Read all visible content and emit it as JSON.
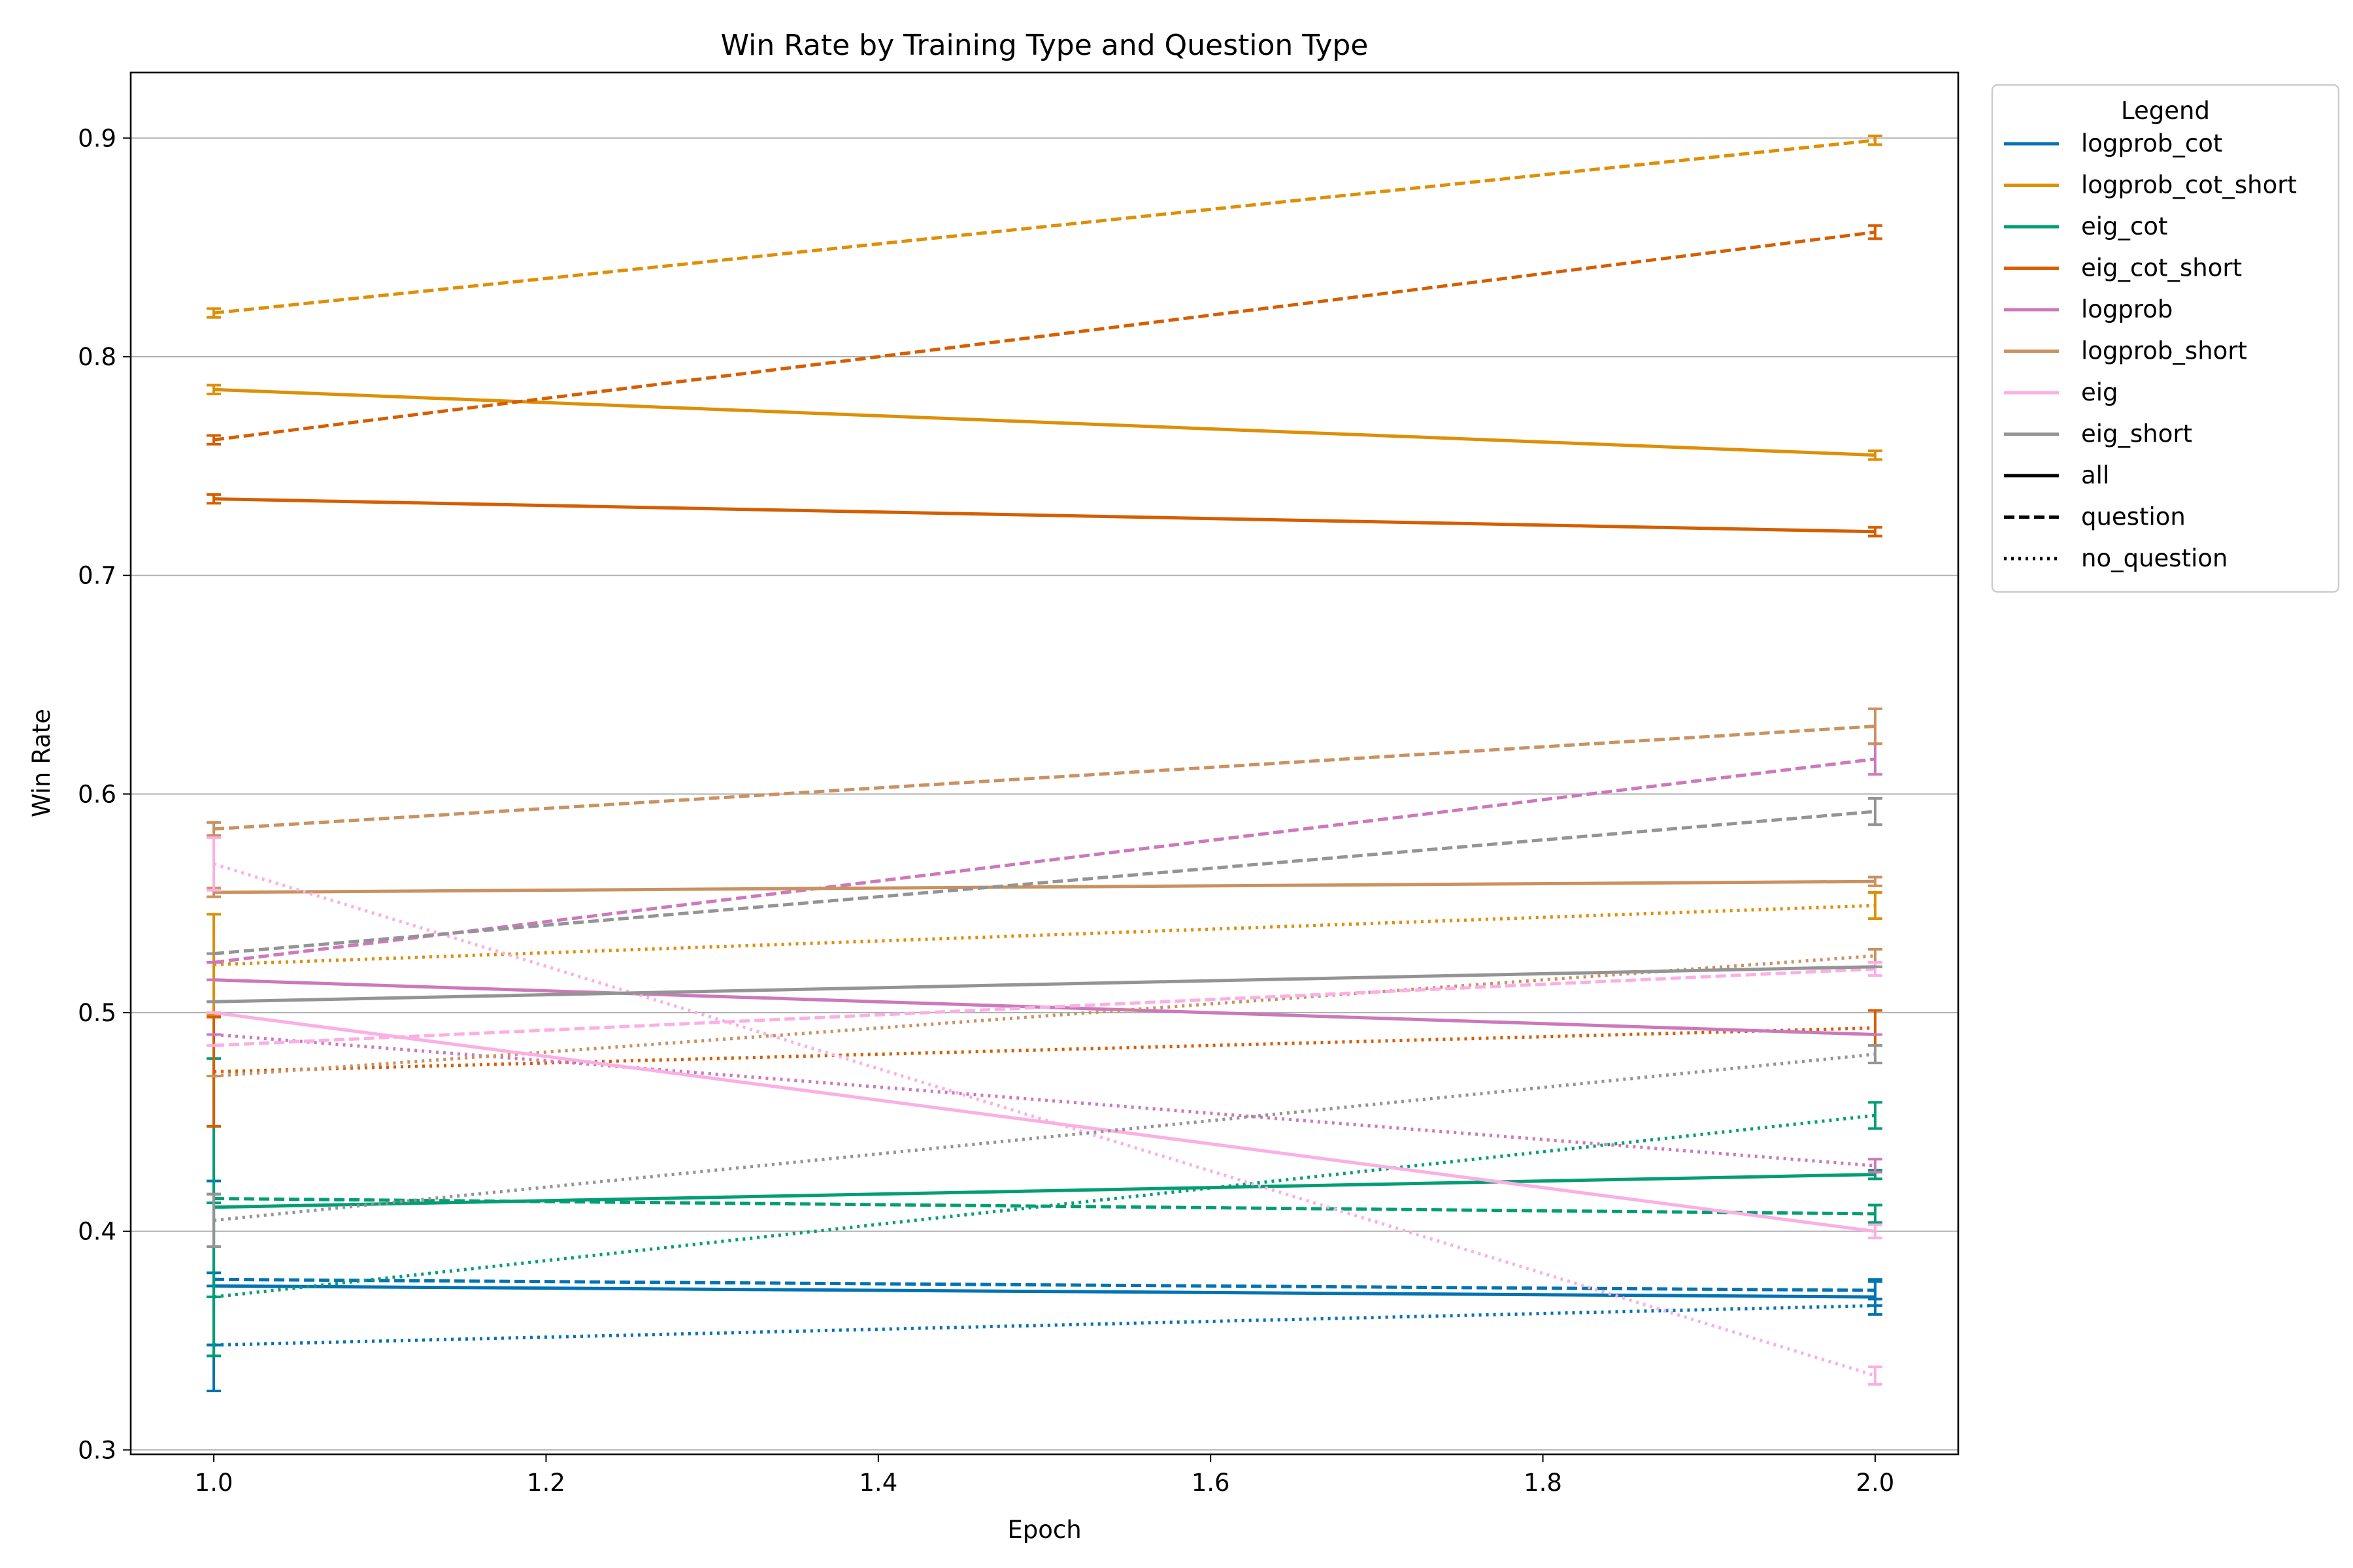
{
  "chart_data": {
    "type": "line",
    "title": "Win Rate by Training Type and Question Type",
    "xlabel": "Epoch",
    "ylabel": "Win Rate",
    "x": [
      1.0,
      2.0
    ],
    "xlim": [
      0.95,
      2.05
    ],
    "ylim": [
      0.298,
      0.93
    ],
    "xticks": [
      "1.0",
      "1.2",
      "1.4",
      "1.6",
      "1.8",
      "2.0"
    ],
    "yticks": [
      "0.3",
      "0.4",
      "0.5",
      "0.6",
      "0.7",
      "0.8",
      "0.9"
    ],
    "grid": "horizontal",
    "legend": {
      "title": "Legend",
      "placement": "outside-right",
      "training_types": [
        {
          "name": "logprob_cot",
          "color": "#0173b2"
        },
        {
          "name": "logprob_cot_short",
          "color": "#de8f05"
        },
        {
          "name": "eig_cot",
          "color": "#029e73"
        },
        {
          "name": "eig_cot_short",
          "color": "#d55e00"
        },
        {
          "name": "logprob",
          "color": "#cc78bc"
        },
        {
          "name": "logprob_short",
          "color": "#ca9161"
        },
        {
          "name": "eig",
          "color": "#fbafe4"
        },
        {
          "name": "eig_short",
          "color": "#949494"
        }
      ],
      "question_types": [
        {
          "name": "all",
          "dash": "solid"
        },
        {
          "name": "question",
          "dash": "dashed"
        },
        {
          "name": "no_question",
          "dash": "dotted"
        }
      ]
    },
    "series": [
      {
        "training": "logprob_cot",
        "question": "all",
        "values": [
          0.375,
          0.37
        ],
        "err": [
          0.048,
          0.008
        ]
      },
      {
        "training": "logprob_cot",
        "question": "question",
        "values": [
          0.378,
          0.373
        ],
        "err": [
          0.003,
          0.004
        ]
      },
      {
        "training": "logprob_cot",
        "question": "no_question",
        "values": [
          0.348,
          0.366
        ],
        "err": [
          0.0,
          0.0
        ]
      },
      {
        "training": "logprob_cot_short",
        "question": "all",
        "values": [
          0.785,
          0.755
        ],
        "err": [
          0.002,
          0.002
        ]
      },
      {
        "training": "logprob_cot_short",
        "question": "question",
        "values": [
          0.82,
          0.899
        ],
        "err": [
          0.002,
          0.002
        ]
      },
      {
        "training": "logprob_cot_short",
        "question": "no_question",
        "values": [
          0.522,
          0.549
        ],
        "err": [
          0.023,
          0.006
        ]
      },
      {
        "training": "eig_cot",
        "question": "all",
        "values": [
          0.411,
          0.426
        ],
        "err": [
          0.068,
          0.002
        ]
      },
      {
        "training": "eig_cot",
        "question": "question",
        "values": [
          0.415,
          0.408
        ],
        "err": [
          0.002,
          0.004
        ]
      },
      {
        "training": "eig_cot",
        "question": "no_question",
        "values": [
          0.37,
          0.453
        ],
        "err": [
          0.0,
          0.006
        ]
      },
      {
        "training": "eig_cot_short",
        "question": "all",
        "values": [
          0.735,
          0.72
        ],
        "err": [
          0.002,
          0.002
        ]
      },
      {
        "training": "eig_cot_short",
        "question": "question",
        "values": [
          0.762,
          0.857
        ],
        "err": [
          0.002,
          0.003
        ]
      },
      {
        "training": "eig_cot_short",
        "question": "no_question",
        "values": [
          0.473,
          0.493
        ],
        "err": [
          0.025,
          0.008
        ]
      },
      {
        "training": "logprob",
        "question": "all",
        "values": [
          0.515,
          0.49
        ],
        "err": [
          0.0,
          0.0
        ]
      },
      {
        "training": "logprob",
        "question": "question",
        "values": [
          0.523,
          0.616
        ],
        "err": [
          0.0,
          0.007
        ]
      },
      {
        "training": "logprob",
        "question": "no_question",
        "values": [
          0.49,
          0.43
        ],
        "err": [
          0.0,
          0.003
        ]
      },
      {
        "training": "logprob_short",
        "question": "all",
        "values": [
          0.555,
          0.56
        ],
        "err": [
          0.002,
          0.002
        ]
      },
      {
        "training": "logprob_short",
        "question": "question",
        "values": [
          0.584,
          0.631
        ],
        "err": [
          0.003,
          0.008
        ]
      },
      {
        "training": "logprob_short",
        "question": "no_question",
        "values": [
          0.471,
          0.526
        ],
        "err": [
          0.0,
          0.003
        ]
      },
      {
        "training": "eig",
        "question": "all",
        "values": [
          0.5,
          0.4
        ],
        "err": [
          0.0,
          0.003
        ]
      },
      {
        "training": "eig",
        "question": "question",
        "values": [
          0.485,
          0.52
        ],
        "err": [
          0.0,
          0.003
        ]
      },
      {
        "training": "eig",
        "question": "no_question",
        "values": [
          0.568,
          0.334
        ],
        "err": [
          0.012,
          0.004
        ]
      },
      {
        "training": "eig_short",
        "question": "all",
        "values": [
          0.505,
          0.521
        ],
        "err": [
          0.0,
          0.0
        ]
      },
      {
        "training": "eig_short",
        "question": "question",
        "values": [
          0.527,
          0.592
        ],
        "err": [
          0.0,
          0.006
        ]
      },
      {
        "training": "eig_short",
        "question": "no_question",
        "values": [
          0.405,
          0.481
        ],
        "err": [
          0.012,
          0.004
        ]
      }
    ]
  }
}
